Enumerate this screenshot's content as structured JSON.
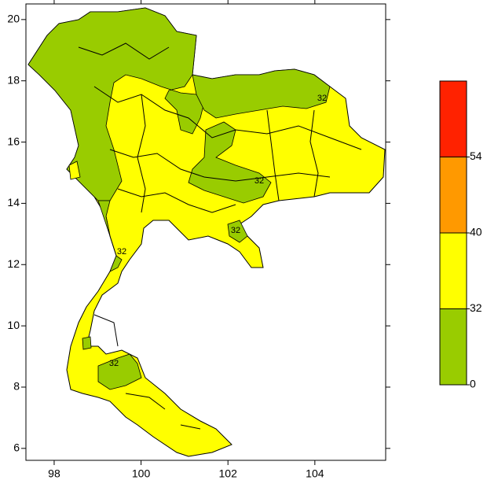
{
  "map": {
    "xlim": [
      97.35,
      105.63
    ],
    "ylim": [
      5.61,
      20.51
    ],
    "xticks": [
      98,
      100,
      102,
      104
    ],
    "yticks": [
      6,
      8,
      10,
      12,
      14,
      16,
      18,
      20
    ],
    "contour_labels": [
      32,
      32,
      32,
      32,
      32
    ],
    "colorbar": {
      "levels": [
        0,
        32,
        40,
        54
      ],
      "colors": [
        "#99cc00",
        "#ffff00",
        "#ff9900",
        "#ff2200"
      ]
    }
  }
}
